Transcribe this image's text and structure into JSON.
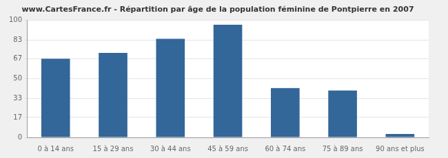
{
  "chart_data": {
    "type": "bar",
    "title": "www.CartesFrance.fr - Répartition par âge de la population féminine de Pontpierre en 2007",
    "categories": [
      "0 à 14 ans",
      "15 à 29 ans",
      "30 à 44 ans",
      "45 à 59 ans",
      "60 à 74 ans",
      "75 à 89 ans",
      "90 ans et plus"
    ],
    "values": [
      67,
      72,
      84,
      96,
      42,
      40,
      3
    ],
    "color": "#336699",
    "ylim": [
      0,
      100
    ],
    "yticks": [
      0,
      17,
      33,
      50,
      67,
      83,
      100
    ],
    "grid": true
  }
}
